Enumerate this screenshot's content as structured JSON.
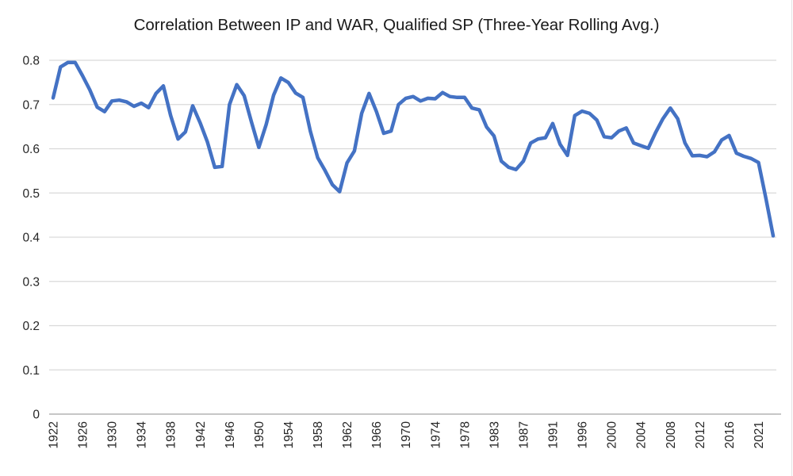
{
  "chart_data": {
    "type": "line",
    "title": "Correlation Between IP and WAR, Qualified SP (Three-Year Rolling Avg.)",
    "legend": "none",
    "grid": "horizontal",
    "ylim": [
      0,
      0.8
    ],
    "yticks": [
      0,
      0.1,
      0.2,
      0.3,
      0.4,
      0.5,
      0.6,
      0.7,
      0.8
    ],
    "ytick_labels": [
      "0",
      "0.1",
      "0.2",
      "0.3",
      "0.4",
      "0.5",
      "0.6",
      "0.7",
      "0.8"
    ],
    "xtick_label_every": 4,
    "xtick_labels_shown": [
      "1922",
      "1926",
      "1930",
      "1934",
      "1938",
      "1942",
      "1946",
      "1950",
      "1954",
      "1958",
      "1962",
      "1966",
      "1970",
      "1974",
      "1978",
      "1983",
      "1987",
      "1991",
      "1996",
      "2000",
      "2004",
      "2008",
      "2012",
      "2016",
      "2021"
    ],
    "x": [
      1922,
      1923,
      1924,
      1925,
      1926,
      1927,
      1928,
      1929,
      1930,
      1931,
      1932,
      1933,
      1934,
      1935,
      1936,
      1937,
      1938,
      1939,
      1940,
      1941,
      1942,
      1943,
      1944,
      1945,
      1946,
      1947,
      1948,
      1949,
      1950,
      1951,
      1952,
      1953,
      1954,
      1955,
      1956,
      1957,
      1958,
      1959,
      1960,
      1961,
      1962,
      1963,
      1964,
      1965,
      1966,
      1967,
      1968,
      1969,
      1970,
      1971,
      1972,
      1973,
      1974,
      1975,
      1976,
      1977,
      1978,
      1979,
      1980,
      1982,
      1983,
      1984,
      1985,
      1986,
      1987,
      1988,
      1989,
      1990,
      1991,
      1992,
      1993,
      1995,
      1996,
      1997,
      1998,
      1999,
      2000,
      2001,
      2002,
      2003,
      2004,
      2005,
      2006,
      2007,
      2008,
      2009,
      2010,
      2011,
      2012,
      2013,
      2014,
      2015,
      2016,
      2017,
      2018,
      2019,
      2021,
      2022,
      2023
    ],
    "values": [
      0.715,
      0.785,
      0.795,
      0.795,
      0.765,
      0.733,
      0.694,
      0.684,
      0.708,
      0.71,
      0.706,
      0.696,
      0.703,
      0.693,
      0.725,
      0.742,
      0.675,
      0.622,
      0.638,
      0.697,
      0.659,
      0.615,
      0.558,
      0.56,
      0.7,
      0.745,
      0.72,
      0.66,
      0.603,
      0.655,
      0.721,
      0.76,
      0.75,
      0.726,
      0.716,
      0.64,
      0.58,
      0.551,
      0.519,
      0.503,
      0.568,
      0.595,
      0.68,
      0.725,
      0.684,
      0.635,
      0.64,
      0.7,
      0.714,
      0.718,
      0.708,
      0.714,
      0.713,
      0.727,
      0.718,
      0.716,
      0.716,
      0.692,
      0.688,
      0.649,
      0.629,
      0.572,
      0.558,
      0.553,
      0.572,
      0.613,
      0.622,
      0.625,
      0.657,
      0.61,
      0.585,
      0.675,
      0.685,
      0.68,
      0.665,
      0.627,
      0.625,
      0.64,
      0.647,
      0.613,
      0.607,
      0.601,
      0.637,
      0.668,
      0.692,
      0.668,
      0.613,
      0.584,
      0.585,
      0.582,
      0.593,
      0.62,
      0.63,
      0.59,
      0.583,
      0.578,
      0.569,
      0.489,
      0.403
    ],
    "colors": {
      "line": "#4472C4",
      "gridline": "#D9D9D9",
      "axis_line": "#BFBFBF",
      "tick_text": "#262626",
      "title_text": "#1A1A1A",
      "background": "#FFFFFF"
    }
  }
}
